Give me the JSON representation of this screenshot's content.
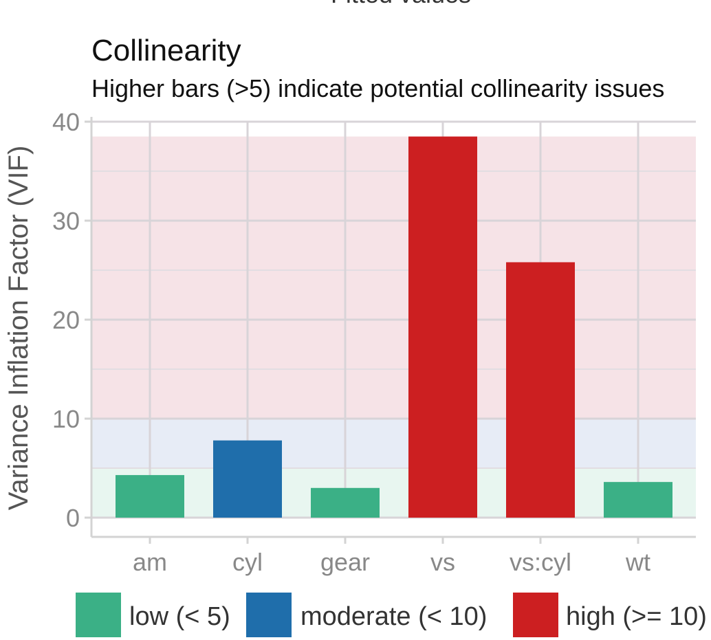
{
  "top_cutoff_text": "Fitted values",
  "chart_data": {
    "type": "bar",
    "title": "Collinearity",
    "subtitle": "Higher bars (>5) indicate potential collinearity issues",
    "xlabel": "",
    "ylabel": "Variance Inflation Factor (VIF)",
    "ylim": [
      0,
      40
    ],
    "yticks": [
      0,
      10,
      20,
      30,
      40
    ],
    "grid": true,
    "categories": [
      "am",
      "cyl",
      "gear",
      "vs",
      "vs:cyl",
      "wt"
    ],
    "values": [
      4.3,
      7.8,
      3.0,
      38.5,
      25.8,
      3.6
    ],
    "levels": [
      "low",
      "moderate",
      "low",
      "high",
      "high",
      "low"
    ],
    "bands": [
      {
        "level": "low",
        "from": 0,
        "to": 5,
        "color": "#e8f6f0"
      },
      {
        "level": "moderate",
        "from": 5,
        "to": 10,
        "color": "#e7ecf6"
      },
      {
        "level": "high",
        "from": 10,
        "to": 38.5,
        "color": "#f6e3e7"
      }
    ],
    "legend": {
      "position": "bottom",
      "items": [
        {
          "level": "low",
          "label": "low (< 5)",
          "color": "#3bb086"
        },
        {
          "level": "moderate",
          "label": "moderate (< 10)",
          "color": "#1f6eab"
        },
        {
          "level": "high",
          "label": "high (>= 10)",
          "color": "#cc1f21"
        }
      ]
    }
  }
}
